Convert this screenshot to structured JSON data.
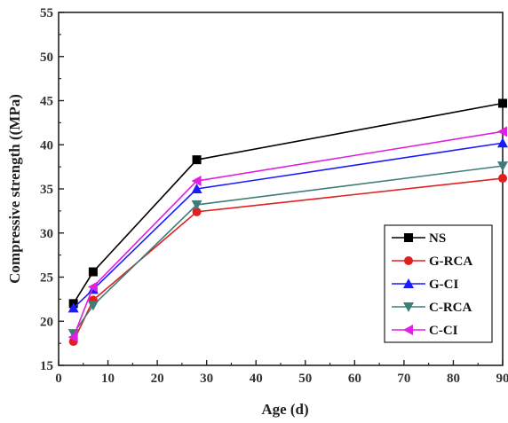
{
  "chart_data": {
    "type": "line",
    "title": "",
    "xlabel": "Age (d)",
    "ylabel": "Compressive strength ((MPa)",
    "xlim": [
      0,
      90
    ],
    "ylim": [
      15,
      55
    ],
    "xticks": [
      0,
      10,
      20,
      30,
      40,
      50,
      60,
      70,
      80,
      90
    ],
    "yticks": [
      15,
      20,
      25,
      30,
      35,
      40,
      45,
      50,
      55
    ],
    "grid": false,
    "legend_position": "bottom-right",
    "x": [
      3,
      7,
      28,
      90
    ],
    "series": [
      {
        "name": "NS",
        "values": [
          22.0,
          25.6,
          38.3,
          44.7
        ],
        "color": "#000000",
        "marker": "square"
      },
      {
        "name": "G-RCA",
        "values": [
          17.7,
          22.4,
          32.4,
          36.2
        ],
        "color": "#e02020",
        "marker": "circle"
      },
      {
        "name": "G-CI",
        "values": [
          21.5,
          23.6,
          35.0,
          40.2
        ],
        "color": "#1a1aff",
        "marker": "triangle-up"
      },
      {
        "name": "C-RCA",
        "values": [
          18.6,
          21.8,
          33.2,
          37.6
        ],
        "color": "#3e7d78",
        "marker": "triangle-down"
      },
      {
        "name": "C-CI",
        "values": [
          18.2,
          23.9,
          35.9,
          41.5
        ],
        "color": "#e020e0",
        "marker": "triangle-left"
      }
    ]
  }
}
